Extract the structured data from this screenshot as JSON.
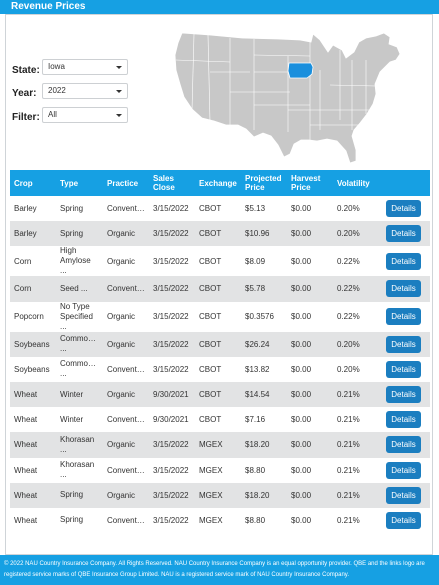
{
  "header": {
    "title": "Revenue Prices"
  },
  "filters": {
    "state": {
      "label": "State:",
      "value": "Iowa"
    },
    "year": {
      "label": "Year:",
      "value": "2022"
    },
    "filter": {
      "label": "Filter:",
      "value": "All"
    }
  },
  "map": {
    "highlight_color": "#1a8fdd",
    "base_color": "#c8c8c8",
    "highlighted_state": "Iowa"
  },
  "table": {
    "headers": [
      "Crop",
      "Type",
      "Practice",
      "Sales Close",
      "Exchange",
      "Projected Price",
      "Harvest Price",
      "Volatility",
      ""
    ],
    "rows": [
      {
        "crop": "Barley",
        "type": "Spring",
        "practice": "Conventi...",
        "sales_close": "3/15/2022",
        "exchange": "CBOT",
        "projected": "$5.13",
        "harvest": "$0.00",
        "volatility": "0.20%",
        "action": "Details"
      },
      {
        "crop": "Barley",
        "type": "Spring",
        "practice": "Organic",
        "sales_close": "3/15/2022",
        "exchange": "CBOT",
        "projected": "$10.96",
        "harvest": "$0.00",
        "volatility": "0.20%",
        "action": "Details"
      },
      {
        "crop": "Corn",
        "type": "High Amylose ...",
        "practice": "Organic",
        "sales_close": "3/15/2022",
        "exchange": "CBOT",
        "projected": "$8.09",
        "harvest": "$0.00",
        "volatility": "0.22%",
        "action": "Details"
      },
      {
        "crop": "Corn",
        "type": "Seed ...",
        "practice": "Conventi...",
        "sales_close": "3/15/2022",
        "exchange": "CBOT",
        "projected": "$5.78",
        "harvest": "$0.00",
        "volatility": "0.22%",
        "action": "Details"
      },
      {
        "crop": "Popcorn",
        "type": "No Type Specified ...",
        "practice": "Organic",
        "sales_close": "3/15/2022",
        "exchange": "CBOT",
        "projected": "$0.3576",
        "harvest": "$0.00",
        "volatility": "0.22%",
        "action": "Details"
      },
      {
        "crop": "Soybeans",
        "type": "Commodity ...",
        "practice": "Organic",
        "sales_close": "3/15/2022",
        "exchange": "CBOT",
        "projected": "$26.24",
        "harvest": "$0.00",
        "volatility": "0.20%",
        "action": "Details"
      },
      {
        "crop": "Soybeans",
        "type": "Commodity ...",
        "practice": "Conventi...",
        "sales_close": "3/15/2022",
        "exchange": "CBOT",
        "projected": "$13.82",
        "harvest": "$0.00",
        "volatility": "0.20%",
        "action": "Details"
      },
      {
        "crop": "Wheat",
        "type": "Winter",
        "practice": "Organic",
        "sales_close": "9/30/2021",
        "exchange": "CBOT",
        "projected": "$14.54",
        "harvest": "$0.00",
        "volatility": "0.21%",
        "action": "Details"
      },
      {
        "crop": "Wheat",
        "type": "Winter",
        "practice": "Conventi...",
        "sales_close": "9/30/2021",
        "exchange": "CBOT",
        "projected": "$7.16",
        "harvest": "$0.00",
        "volatility": "0.21%",
        "action": "Details"
      },
      {
        "crop": "Wheat",
        "type": "Khorasan ...",
        "practice": "Organic",
        "sales_close": "3/15/2022",
        "exchange": "MGEX",
        "projected": "$18.20",
        "harvest": "$0.00",
        "volatility": "0.21%",
        "action": "Details"
      },
      {
        "crop": "Wheat",
        "type": "Khorasan ...",
        "practice": "Conventi...",
        "sales_close": "3/15/2022",
        "exchange": "MGEX",
        "projected": "$8.80",
        "harvest": "$0.00",
        "volatility": "0.21%",
        "action": "Details"
      },
      {
        "crop": "Wheat",
        "type": "Spring",
        "practice": "Organic",
        "sales_close": "3/15/2022",
        "exchange": "MGEX",
        "projected": "$18.20",
        "harvest": "$0.00",
        "volatility": "0.21%",
        "action": "Details"
      },
      {
        "crop": "Wheat",
        "type": "Spring",
        "practice": "Conventi...",
        "sales_close": "3/15/2022",
        "exchange": "MGEX",
        "projected": "$8.80",
        "harvest": "$0.00",
        "volatility": "0.21%",
        "action": "Details"
      }
    ]
  },
  "footer": {
    "text": "© 2022 NAU Country Insurance Company. All Rights Reserved. NAU Country Insurance Company is an equal opportunity provider. QBE and the links logo are registered service marks of QBE Insurance Group Limited. NAU is a registered service mark of NAU Country Insurance Company."
  }
}
